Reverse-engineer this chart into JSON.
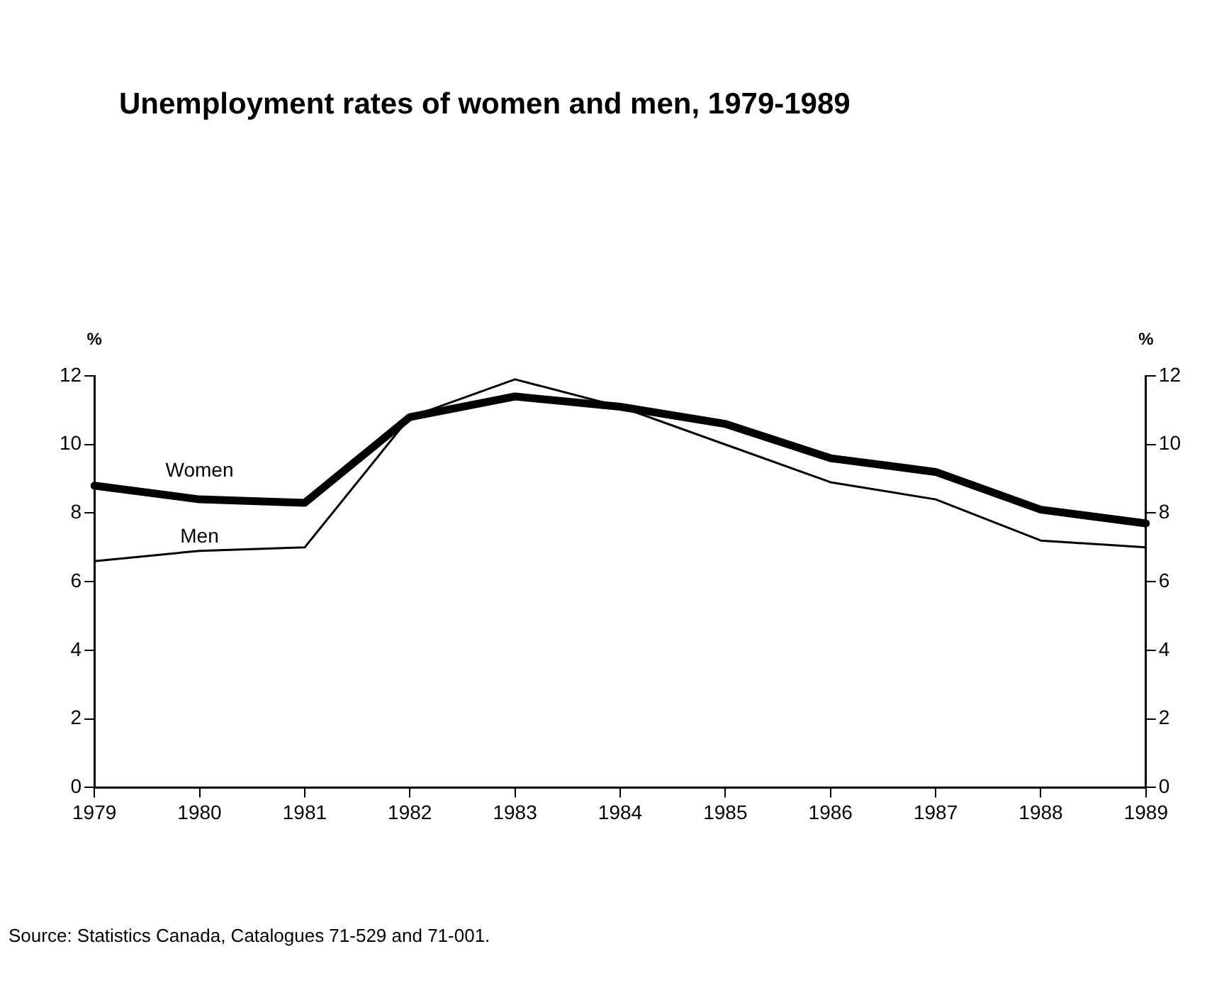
{
  "chart_data": {
    "type": "line",
    "title": "Unemployment rates of women and men, 1979-1989",
    "categories": [
      "1979",
      "1980",
      "1981",
      "1982",
      "1983",
      "1984",
      "1985",
      "1986",
      "1987",
      "1988",
      "1989"
    ],
    "series": [
      {
        "name": "Women",
        "color": "#000000",
        "values": [
          8.8,
          8.4,
          8.3,
          10.8,
          11.4,
          11.1,
          10.6,
          9.6,
          9.2,
          8.1,
          7.7
        ]
      },
      {
        "name": "Men",
        "color": "#000000",
        "values": [
          6.6,
          6.9,
          7.0,
          10.8,
          11.9,
          11.1,
          10.0,
          8.9,
          8.4,
          7.2,
          7.0
        ]
      }
    ],
    "ylabel": "%",
    "y2label": "%",
    "ylim": [
      0,
      12
    ],
    "yticks": [
      0,
      2,
      4,
      6,
      8,
      10,
      12
    ],
    "y2lim": [
      0,
      12
    ],
    "y2ticks": [
      0,
      2,
      4,
      6,
      8,
      10,
      12
    ],
    "grid": false,
    "legend": false,
    "marker": "none",
    "line_style": "solid",
    "annotations": [
      "Source: Statistics Canada, Catalogues 71-529 and 71-001."
    ]
  }
}
